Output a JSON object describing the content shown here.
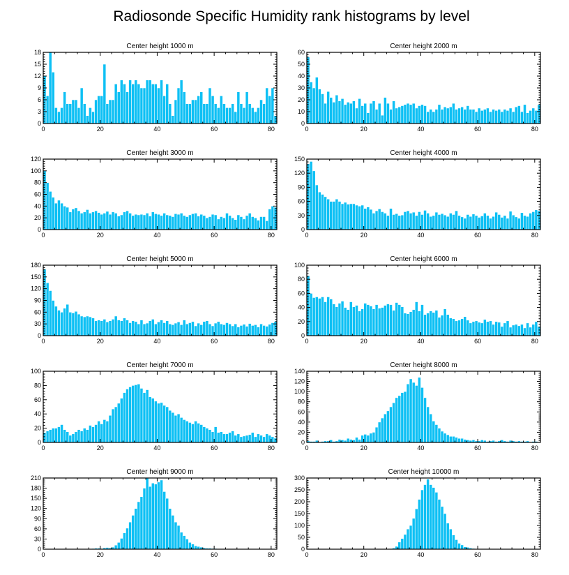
{
  "figure_title": "Radiosonde Specific Humidity rank histograms by level",
  "chart_data": [
    {
      "type": "bar",
      "title": "Center height 1000 m",
      "xlim": [
        0,
        82
      ],
      "ylim": [
        0,
        18
      ],
      "xticks": [
        0,
        20,
        40,
        60,
        80
      ],
      "yticks": [
        0,
        3,
        6,
        9,
        12,
        15,
        18
      ],
      "values": [
        12,
        7,
        18,
        13,
        4,
        3,
        4,
        8,
        5,
        5,
        6,
        6,
        4,
        9,
        5,
        2,
        4,
        3,
        6,
        7,
        7,
        15,
        5,
        6,
        6,
        10,
        8,
        11,
        10,
        8,
        11,
        10,
        11,
        10,
        9,
        9,
        11,
        11,
        10,
        10,
        9,
        11,
        7,
        10,
        5,
        2,
        6,
        9,
        11,
        8,
        5,
        5,
        6,
        6,
        7,
        8,
        5,
        5,
        9,
        7,
        5,
        4,
        7,
        5,
        4,
        4,
        5,
        3,
        8,
        5,
        4,
        8,
        5,
        4,
        3,
        4,
        6,
        5,
        9,
        7,
        9,
        2
      ],
      "xlabel": "",
      "ylabel": ""
    },
    {
      "type": "bar",
      "title": "Center height 2000 m",
      "xlim": [
        0,
        82
      ],
      "ylim": [
        0,
        60
      ],
      "xticks": [
        0,
        20,
        40,
        60,
        80
      ],
      "yticks": [
        0,
        10,
        20,
        30,
        40,
        50,
        60
      ],
      "values": [
        56,
        35,
        30,
        39,
        29,
        25,
        17,
        27,
        22,
        18,
        24,
        19,
        21,
        16,
        18,
        17,
        19,
        13,
        21,
        15,
        17,
        9,
        17,
        19,
        12,
        17,
        7,
        22,
        17,
        12,
        19,
        13,
        14,
        15,
        16,
        17,
        16,
        17,
        13,
        15,
        16,
        15,
        10,
        12,
        10,
        12,
        16,
        12,
        14,
        13,
        14,
        17,
        12,
        13,
        14,
        12,
        15,
        12,
        12,
        10,
        13,
        11,
        12,
        13,
        10,
        12,
        11,
        12,
        10,
        12,
        11,
        13,
        10,
        14,
        15,
        10,
        16,
        9,
        11,
        13,
        11,
        16
      ],
      "xlabel": "",
      "ylabel": ""
    },
    {
      "type": "bar",
      "title": "Center height 3000 m",
      "xlim": [
        0,
        82
      ],
      "ylim": [
        0,
        120
      ],
      "xticks": [
        0,
        20,
        40,
        60,
        80
      ],
      "yticks": [
        0,
        20,
        40,
        60,
        80,
        100,
        120
      ],
      "values": [
        100,
        80,
        65,
        55,
        45,
        50,
        45,
        40,
        38,
        30,
        35,
        37,
        32,
        28,
        30,
        34,
        28,
        30,
        32,
        29,
        26,
        28,
        31,
        26,
        30,
        28,
        23,
        25,
        30,
        32,
        28,
        24,
        26,
        25,
        26,
        25,
        28,
        23,
        30,
        27,
        26,
        24,
        28,
        25,
        24,
        22,
        27,
        26,
        28,
        24,
        22,
        25,
        27,
        28,
        23,
        26,
        24,
        20,
        22,
        26,
        25,
        18,
        22,
        20,
        28,
        24,
        20,
        17,
        25,
        22,
        18,
        24,
        28,
        22,
        20,
        16,
        22,
        22,
        15,
        35,
        40,
        38
      ],
      "xlabel": "",
      "ylabel": ""
    },
    {
      "type": "bar",
      "title": "Center height 4000 m",
      "xlim": [
        0,
        82
      ],
      "ylim": [
        0,
        150
      ],
      "xticks": [
        0,
        20,
        40,
        60,
        80
      ],
      "yticks": [
        0,
        30,
        60,
        90,
        120,
        150
      ],
      "values": [
        140,
        145,
        125,
        95,
        80,
        75,
        70,
        65,
        60,
        60,
        65,
        60,
        55,
        58,
        54,
        55,
        55,
        52,
        50,
        52,
        45,
        48,
        43,
        35,
        40,
        44,
        38,
        35,
        30,
        45,
        32,
        34,
        30,
        31,
        38,
        40,
        35,
        37,
        30,
        38,
        32,
        41,
        35,
        28,
        30,
        37,
        32,
        34,
        31,
        28,
        35,
        32,
        40,
        30,
        27,
        24,
        32,
        28,
        33,
        30,
        26,
        29,
        35,
        30,
        24,
        28,
        37,
        32,
        26,
        30,
        24,
        39,
        31,
        27,
        24,
        36,
        30,
        28,
        35,
        38,
        42,
        40
      ],
      "xlabel": "",
      "ylabel": ""
    },
    {
      "type": "bar",
      "title": "Center height 5000 m",
      "xlim": [
        0,
        82
      ],
      "ylim": [
        0,
        180
      ],
      "xticks": [
        0,
        20,
        40,
        60,
        80
      ],
      "yticks": [
        0,
        30,
        60,
        90,
        120,
        150,
        180
      ],
      "values": [
        170,
        135,
        115,
        90,
        75,
        65,
        60,
        70,
        80,
        60,
        58,
        62,
        55,
        50,
        48,
        50,
        48,
        45,
        38,
        40,
        38,
        42,
        35,
        38,
        42,
        50,
        40,
        38,
        45,
        40,
        33,
        38,
        36,
        30,
        40,
        30,
        32,
        38,
        42,
        30,
        35,
        40,
        33,
        38,
        30,
        28,
        32,
        35,
        28,
        40,
        30,
        33,
        36,
        25,
        32,
        28,
        36,
        38,
        30,
        25,
        32,
        36,
        30,
        28,
        33,
        30,
        25,
        30,
        22,
        26,
        29,
        24,
        31,
        26,
        28,
        22,
        30,
        26,
        24,
        29,
        33,
        36
      ],
      "xlabel": "",
      "ylabel": ""
    },
    {
      "type": "bar",
      "title": "Center height 6000 m",
      "xlim": [
        0,
        82
      ],
      "ylim": [
        0,
        100
      ],
      "xticks": [
        0,
        20,
        40,
        60,
        80
      ],
      "yticks": [
        0,
        20,
        40,
        60,
        80,
        100
      ],
      "values": [
        85,
        60,
        54,
        55,
        53,
        55,
        48,
        55,
        52,
        45,
        41,
        46,
        49,
        40,
        37,
        48,
        41,
        43,
        35,
        38,
        46,
        44,
        42,
        38,
        44,
        39,
        40,
        43,
        45,
        44,
        36,
        47,
        44,
        41,
        32,
        31,
        34,
        37,
        48,
        35,
        44,
        30,
        32,
        35,
        33,
        36,
        26,
        29,
        38,
        30,
        25,
        24,
        21,
        22,
        24,
        27,
        22,
        18,
        20,
        21,
        19,
        18,
        23,
        20,
        21,
        16,
        20,
        19,
        13,
        18,
        21,
        12,
        15,
        16,
        14,
        16,
        11,
        18,
        12,
        16,
        20,
        13
      ],
      "xlabel": "",
      "ylabel": ""
    },
    {
      "type": "bar",
      "title": "Center height 7000 m",
      "xlim": [
        0,
        82
      ],
      "ylim": [
        0,
        100
      ],
      "xticks": [
        0,
        20,
        40,
        60,
        80
      ],
      "yticks": [
        0,
        20,
        40,
        60,
        80,
        100
      ],
      "values": [
        14,
        16,
        18,
        20,
        20,
        22,
        25,
        18,
        15,
        10,
        12,
        15,
        18,
        16,
        20,
        18,
        24,
        22,
        25,
        30,
        26,
        32,
        30,
        38,
        47,
        50,
        55,
        62,
        70,
        75,
        78,
        80,
        81,
        82,
        76,
        70,
        74,
        64,
        62,
        58,
        55,
        56,
        52,
        50,
        45,
        42,
        38,
        40,
        35,
        32,
        30,
        28,
        26,
        30,
        27,
        25,
        22,
        20,
        18,
        15,
        22,
        14,
        15,
        12,
        12,
        14,
        16,
        10,
        12,
        8,
        9,
        10,
        11,
        14,
        8,
        12,
        10,
        8,
        12,
        10,
        8,
        6
      ],
      "xlabel": "",
      "ylabel": ""
    },
    {
      "type": "bar",
      "title": "Center height 8000 m",
      "xlim": [
        0,
        82
      ],
      "ylim": [
        0,
        140
      ],
      "xticks": [
        0,
        20,
        40,
        60,
        80
      ],
      "yticks": [
        0,
        20,
        40,
        60,
        80,
        100,
        120,
        140
      ],
      "values": [
        3,
        2,
        2,
        4,
        1,
        2,
        3,
        3,
        5,
        2,
        3,
        6,
        5,
        4,
        8,
        6,
        5,
        10,
        6,
        14,
        16,
        14,
        18,
        20,
        30,
        40,
        48,
        56,
        62,
        70,
        78,
        88,
        92,
        98,
        100,
        115,
        125,
        118,
        112,
        128,
        108,
        88,
        70,
        56,
        42,
        35,
        28,
        22,
        18,
        15,
        12,
        12,
        10,
        8,
        8,
        6,
        5,
        4,
        5,
        3,
        3,
        5,
        4,
        2,
        3,
        4,
        2,
        3,
        5,
        3,
        2,
        4,
        3,
        2,
        3,
        2,
        2,
        3,
        1,
        2,
        2,
        1
      ],
      "xlabel": "",
      "ylabel": ""
    },
    {
      "type": "bar",
      "title": "Center height 9000 m",
      "xlim": [
        0,
        82
      ],
      "ylim": [
        0,
        210
      ],
      "xticks": [
        0,
        20,
        40,
        60,
        80
      ],
      "yticks": [
        0,
        30,
        60,
        90,
        120,
        150,
        180,
        210
      ],
      "values": [
        0,
        0,
        0,
        0,
        0,
        0,
        0,
        0,
        0,
        0,
        0,
        0,
        0,
        0,
        0,
        1,
        1,
        2,
        3,
        3,
        2,
        4,
        5,
        4,
        6,
        12,
        20,
        32,
        48,
        62,
        80,
        100,
        120,
        140,
        155,
        180,
        212,
        185,
        195,
        192,
        198,
        204,
        170,
        150,
        120,
        100,
        80,
        70,
        50,
        40,
        30,
        20,
        15,
        10,
        8,
        6,
        4,
        3,
        3,
        2,
        2,
        1,
        1,
        1,
        1,
        1,
        0,
        0,
        0,
        0,
        0,
        0,
        0,
        0,
        0,
        0,
        0,
        0,
        0,
        0,
        0,
        0
      ],
      "xlabel": "",
      "ylabel": ""
    },
    {
      "type": "bar",
      "title": "Center height 10000 m",
      "xlim": [
        0,
        82
      ],
      "ylim": [
        0,
        300
      ],
      "xticks": [
        0,
        20,
        40,
        60,
        80
      ],
      "yticks": [
        0,
        50,
        100,
        150,
        200,
        250,
        300
      ],
      "values": [
        0,
        0,
        0,
        0,
        0,
        0,
        0,
        0,
        0,
        0,
        0,
        0,
        0,
        0,
        0,
        0,
        0,
        0,
        0,
        0,
        0,
        0,
        0,
        0,
        0,
        0,
        0,
        0,
        1,
        2,
        5,
        12,
        30,
        45,
        62,
        85,
        100,
        130,
        170,
        210,
        250,
        272,
        295,
        272,
        260,
        240,
        210,
        180,
        150,
        110,
        85,
        60,
        40,
        25,
        18,
        10,
        8,
        5,
        3,
        2,
        1,
        1,
        0,
        0,
        0,
        0,
        0,
        0,
        0,
        0,
        0,
        0,
        0,
        0,
        0,
        0,
        0,
        0,
        0,
        0,
        0,
        0
      ],
      "xlabel": "",
      "ylabel": ""
    }
  ]
}
